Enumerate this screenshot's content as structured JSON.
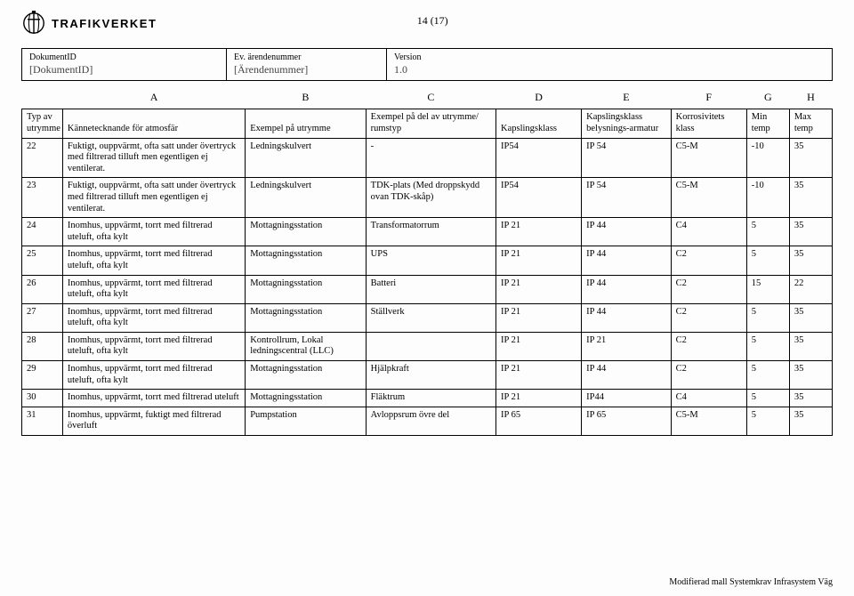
{
  "logo_text": "TRAFIKVERKET",
  "page_number": "14 (17)",
  "doc_meta": {
    "id_label": "DokumentID",
    "id_val": "[DokumentID]",
    "eid_label": "Ev. ärendenummer",
    "eid_val": "[Ärendenummer]",
    "ver_label": "Version",
    "ver_val": "1.0"
  },
  "letters": [
    "A",
    "B",
    "C",
    "D",
    "E",
    "F",
    "G",
    "H"
  ],
  "blank_col_header": "",
  "headers": {
    "typ": "Typ av utrymme",
    "kan": "Kännetecknande för atmosfär",
    "ex_utr": "Exempel på utrymme",
    "ex_rum": "Exempel på del av utrymme/ rumstyp",
    "kap": "Kapslingsklass",
    "kap_bel": "Kapslingsklass belysnings-armatur",
    "kor": "Korrosivitets klass",
    "min": "Min temp",
    "max": "Max temp"
  },
  "rows": [
    {
      "n": "22",
      "a": "Fuktigt, ouppvärmt, ofta satt under övertryck med filtrerad tilluft men egentligen ej ventilerat.",
      "b": "Ledningskulvert",
      "c": "-",
      "d": "IP54",
      "e": "IP 54",
      "f": "C5-M",
      "g": "-10",
      "h": "35"
    },
    {
      "n": "23",
      "a": "Fuktigt, ouppvärmt, ofta satt under övertryck med filtrerad tilluft men egentligen ej ventilerat.",
      "b": "Ledningskulvert",
      "c": "TDK-plats (Med droppskydd ovan TDK-skåp)",
      "d": "IP54",
      "e": "IP 54",
      "f": "C5-M",
      "g": "-10",
      "h": "35"
    },
    {
      "n": "24",
      "a": "Inomhus, uppvärmt, torrt med filtrerad uteluft, ofta kylt",
      "b": "Mottagningsstation",
      "c": "Transformatorrum",
      "d": "IP 21",
      "e": "IP 44",
      "f": "C4",
      "g": "5",
      "h": "35"
    },
    {
      "n": "25",
      "a": "Inomhus, uppvärmt, torrt med filtrerad uteluft, ofta kylt",
      "b": "Mottagningsstation",
      "c": "UPS",
      "d": "IP 21",
      "e": "IP 44",
      "f": "C2",
      "g": "5",
      "h": "35"
    },
    {
      "n": "26",
      "a": "Inomhus, uppvärmt, torrt med filtrerad uteluft, ofta kylt",
      "b": "Mottagningsstation",
      "c": "Batteri",
      "d": "IP 21",
      "e": "IP 44",
      "f": "C2",
      "g": "15",
      "h": "22"
    },
    {
      "n": "27",
      "a": "Inomhus, uppvärmt, torrt med filtrerad uteluft, ofta kylt",
      "b": "Mottagningsstation",
      "c": "Ställverk",
      "d": "IP 21",
      "e": "IP 44",
      "f": "C2",
      "g": "5",
      "h": "35"
    },
    {
      "n": "28",
      "a": "Inomhus, uppvärmt, torrt med filtrerad uteluft, ofta kylt",
      "b": "Kontrollrum, Lokal ledningscentral (LLC)",
      "c": "",
      "d": "IP 21",
      "e": "IP 21",
      "f": "C2",
      "g": "5",
      "h": "35"
    },
    {
      "n": "29",
      "a": "Inomhus, uppvärmt, torrt med filtrerad uteluft, ofta kylt",
      "b": "Mottagningsstation",
      "c": "Hjälpkraft",
      "d": "IP 21",
      "e": "IP 44",
      "f": "C2",
      "g": "5",
      "h": "35"
    },
    {
      "n": "30",
      "a": "Inomhus, uppvärmt, torrt med filtrerad uteluft",
      "b": "Mottagningsstation",
      "c": "Fläktrum",
      "d": "IP 21",
      "e": "IP44",
      "f": "C4",
      "g": "5",
      "h": "35"
    },
    {
      "n": "31",
      "a": "Inomhus, uppvärmt, fuktigt med filtrerad överluft",
      "b": "Pumpstation",
      "c": "Avloppsrum övre del",
      "d": "IP 65",
      "e": "IP 65",
      "f": "C5-M",
      "g": "5",
      "h": "35"
    }
  ],
  "footer": "Modifierad mall Systemkrav Infrasystem Väg"
}
